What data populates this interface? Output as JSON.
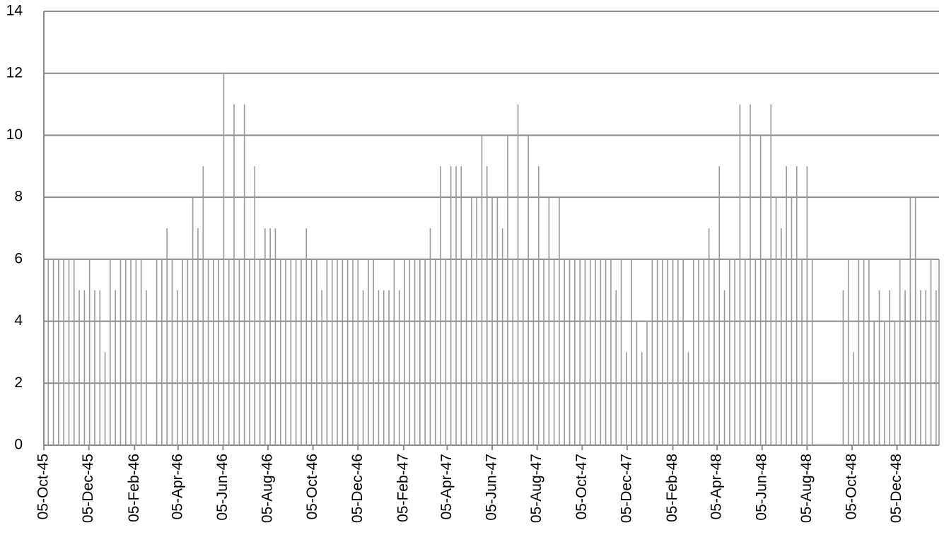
{
  "chart_data": {
    "type": "bar",
    "x": [
      "1945-10-11",
      "1945-10-18",
      "1945-10-25",
      "1945-11-01",
      "1945-11-08",
      "1945-11-15",
      "1945-11-22",
      "1945-11-29",
      "1945-12-06",
      "1945-12-13",
      "1945-12-20",
      "1945-12-27",
      "1946-01-03",
      "1946-01-10",
      "1946-01-17",
      "1946-01-24",
      "1946-01-31",
      "1946-02-07",
      "1946-02-14",
      "1946-02-21",
      "1946-02-28",
      "1946-03-07",
      "1946-03-14",
      "1946-03-21",
      "1946-03-28",
      "1946-04-04",
      "1946-04-11",
      "1946-04-18",
      "1946-04-25",
      "1946-05-02",
      "1946-05-09",
      "1946-05-16",
      "1946-05-23",
      "1946-05-30",
      "1946-06-06",
      "1946-06-13",
      "1946-06-20",
      "1946-06-27",
      "1946-07-04",
      "1946-07-11",
      "1946-07-18",
      "1946-07-25",
      "1946-08-01",
      "1946-08-08",
      "1946-08-15",
      "1946-08-22",
      "1946-08-29",
      "1946-09-05",
      "1946-09-12",
      "1946-09-19",
      "1946-09-26",
      "1946-10-03",
      "1946-10-10",
      "1946-10-17",
      "1946-10-24",
      "1946-10-31",
      "1946-11-07",
      "1946-11-14",
      "1946-11-21",
      "1946-11-28",
      "1946-12-05",
      "1946-12-12",
      "1946-12-19",
      "1946-12-26",
      "1947-01-02",
      "1947-01-09",
      "1947-01-16",
      "1947-01-23",
      "1947-01-30",
      "1947-02-06",
      "1947-02-13",
      "1947-02-20",
      "1947-02-27",
      "1947-03-06",
      "1947-03-13",
      "1947-03-20",
      "1947-03-27",
      "1947-04-03",
      "1947-04-10",
      "1947-04-17",
      "1947-04-24",
      "1947-05-01",
      "1947-05-08",
      "1947-05-15",
      "1947-05-22",
      "1947-05-29",
      "1947-06-05",
      "1947-06-12",
      "1947-06-19",
      "1947-06-26",
      "1947-07-03",
      "1947-07-10",
      "1947-07-17",
      "1947-07-24",
      "1947-07-31",
      "1947-08-07",
      "1947-08-14",
      "1947-08-21",
      "1947-08-28",
      "1947-09-04",
      "1947-09-11",
      "1947-09-18",
      "1947-09-25",
      "1947-10-02",
      "1947-10-09",
      "1947-10-16",
      "1947-10-23",
      "1947-10-30",
      "1947-11-06",
      "1947-11-13",
      "1947-11-20",
      "1947-11-27",
      "1947-12-04",
      "1947-12-11",
      "1947-12-18",
      "1947-12-25",
      "1948-01-01",
      "1948-01-08",
      "1948-01-15",
      "1948-01-22",
      "1948-01-29",
      "1948-02-05",
      "1948-02-12",
      "1948-02-19",
      "1948-02-26",
      "1948-03-04",
      "1948-03-11",
      "1948-03-18",
      "1948-03-25",
      "1948-04-01",
      "1948-04-08",
      "1948-04-15",
      "1948-04-22",
      "1948-04-29",
      "1948-05-06",
      "1948-05-13",
      "1948-05-20",
      "1948-05-27",
      "1948-06-03",
      "1948-06-10",
      "1948-06-17",
      "1948-06-24",
      "1948-07-01",
      "1948-07-08",
      "1948-07-15",
      "1948-07-22",
      "1948-07-29",
      "1948-08-05",
      "1948-08-12",
      "1948-08-19",
      "1948-08-26",
      "1948-09-02",
      "1948-09-09",
      "1948-09-16",
      "1948-09-23",
      "1948-09-30",
      "1948-10-07",
      "1948-10-14",
      "1948-10-21",
      "1948-10-28",
      "1948-11-04",
      "1948-11-11",
      "1948-11-18",
      "1948-11-25",
      "1948-12-02",
      "1948-12-09",
      "1948-12-16",
      "1948-12-23",
      "1948-12-30",
      "1949-01-06",
      "1949-01-13",
      "1949-01-20",
      "1949-01-27"
    ],
    "values": [
      6,
      6,
      6,
      6,
      6,
      6,
      5,
      5,
      6,
      5,
      5,
      3,
      6,
      5,
      6,
      6,
      6,
      6,
      6,
      5,
      null,
      6,
      6,
      7,
      6,
      5,
      6,
      6,
      8,
      7,
      9,
      6,
      6,
      6,
      12,
      6,
      11,
      6,
      11,
      6,
      9,
      6,
      7,
      7,
      7,
      6,
      6,
      6,
      6,
      6,
      7,
      6,
      6,
      5,
      6,
      6,
      6,
      6,
      6,
      6,
      6,
      5,
      6,
      6,
      5,
      5,
      5,
      6,
      5,
      6,
      6,
      6,
      6,
      6,
      7,
      6,
      9,
      6,
      9,
      9,
      9,
      6,
      8,
      8,
      10,
      9,
      8,
      8,
      7,
      10,
      6,
      11,
      6,
      10,
      6,
      9,
      6,
      8,
      6,
      8,
      6,
      6,
      6,
      6,
      6,
      6,
      6,
      6,
      6,
      6,
      5,
      6,
      3,
      6,
      4,
      3,
      4,
      6,
      6,
      6,
      6,
      6,
      6,
      6,
      3,
      6,
      6,
      6,
      7,
      6,
      9,
      5,
      6,
      6,
      11,
      6,
      11,
      6,
      10,
      6,
      11,
      8,
      7,
      9,
      8,
      9,
      6,
      9,
      6,
      null,
      null,
      null,
      null,
      null,
      5,
      6,
      3,
      6,
      6,
      6,
      4,
      5,
      4,
      5,
      4,
      6,
      5,
      8,
      8,
      5,
      5,
      6,
      5
    ],
    "color": "#999999",
    "xlim": [
      "1945-10-05",
      "1949-01-31"
    ],
    "xticks": [
      {
        "value": "1945-10-05",
        "label": "05-Oct-45"
      },
      {
        "value": "1945-12-05",
        "label": "05-Dec-45"
      },
      {
        "value": "1946-02-05",
        "label": "05-Feb-46"
      },
      {
        "value": "1946-04-05",
        "label": "05-Apr-46"
      },
      {
        "value": "1946-06-05",
        "label": "05-Jun-46"
      },
      {
        "value": "1946-08-05",
        "label": "05-Aug-46"
      },
      {
        "value": "1946-10-05",
        "label": "05-Oct-46"
      },
      {
        "value": "1946-12-05",
        "label": "05-Dec-46"
      },
      {
        "value": "1947-02-05",
        "label": "05-Feb-47"
      },
      {
        "value": "1947-04-05",
        "label": "05-Apr-47"
      },
      {
        "value": "1947-06-05",
        "label": "05-Jun-47"
      },
      {
        "value": "1947-08-05",
        "label": "05-Aug-47"
      },
      {
        "value": "1947-10-05",
        "label": "05-Oct-47"
      },
      {
        "value": "1947-12-05",
        "label": "05-Dec-47"
      },
      {
        "value": "1948-02-05",
        "label": "05-Feb-48"
      },
      {
        "value": "1948-04-05",
        "label": "05-Apr-48"
      },
      {
        "value": "1948-06-05",
        "label": "05-Jun-48"
      },
      {
        "value": "1948-08-05",
        "label": "05-Aug-48"
      },
      {
        "value": "1948-10-05",
        "label": "05-Oct-48"
      },
      {
        "value": "1948-12-05",
        "label": "05-Dec-48"
      }
    ],
    "ylim": [
      0,
      14
    ],
    "yticks": [
      0,
      2,
      4,
      6,
      8,
      10,
      12,
      14
    ],
    "grid": true
  }
}
